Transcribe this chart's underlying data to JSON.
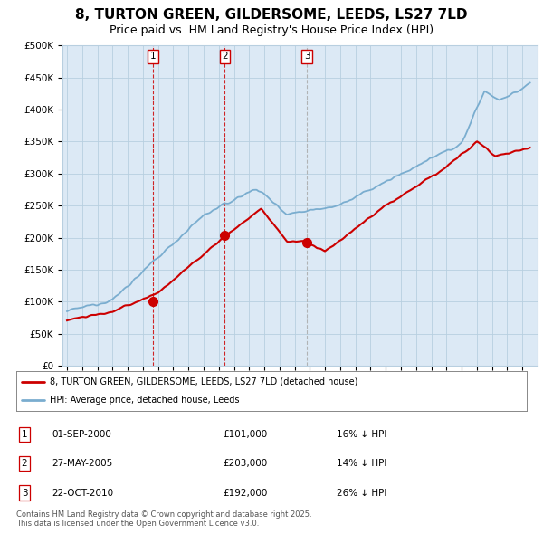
{
  "title": "8, TURTON GREEN, GILDERSOME, LEEDS, LS27 7LD",
  "subtitle": "Price paid vs. HM Land Registry's House Price Index (HPI)",
  "ylim": [
    0,
    500000
  ],
  "yticks": [
    0,
    50000,
    100000,
    150000,
    200000,
    250000,
    300000,
    350000,
    400000,
    450000,
    500000
  ],
  "ytick_labels": [
    "£0",
    "£50K",
    "£100K",
    "£150K",
    "£200K",
    "£250K",
    "£300K",
    "£350K",
    "£400K",
    "£450K",
    "£500K"
  ],
  "purchase_color": "#cc0000",
  "hpi_color": "#7aadcf",
  "vline_colors": [
    "#cc0000",
    "#cc0000",
    "#aaaaaa"
  ],
  "chart_bg": "#dce9f5",
  "legend_label_purchase": "8, TURTON GREEN, GILDERSOME, LEEDS, LS27 7LD (detached house)",
  "legend_label_hpi": "HPI: Average price, detached house, Leeds",
  "table_rows": [
    {
      "num": "1",
      "date": "01-SEP-2000",
      "price": "£101,000",
      "hpi": "16% ↓ HPI"
    },
    {
      "num": "2",
      "date": "27-MAY-2005",
      "price": "£203,000",
      "hpi": "14% ↓ HPI"
    },
    {
      "num": "3",
      "date": "22-OCT-2010",
      "price": "£192,000",
      "hpi": "26% ↓ HPI"
    }
  ],
  "footer": "Contains HM Land Registry data © Crown copyright and database right 2025.\nThis data is licensed under the Open Government Licence v3.0.",
  "bg_color": "#ffffff",
  "grid_color": "#b8cfe0",
  "title_fontsize": 11,
  "subtitle_fontsize": 9
}
